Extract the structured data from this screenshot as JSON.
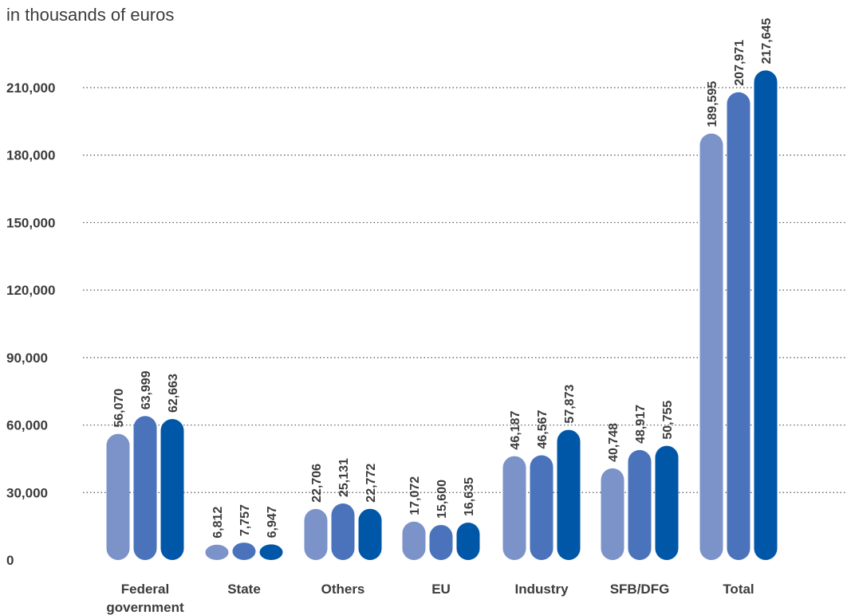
{
  "chart_data": {
    "type": "bar",
    "title": "",
    "subtitle": "in thousands of euros",
    "xlabel": "",
    "ylabel": "",
    "ylim": [
      0,
      210000
    ],
    "yticks": [
      0,
      30000,
      60000,
      90000,
      120000,
      150000,
      180000,
      210000
    ],
    "ytick_labels": [
      "0",
      "30,000",
      "60,000",
      "90,000",
      "120,000",
      "150,000",
      "180,000",
      "210,000"
    ],
    "grid": true,
    "legend": "none",
    "categories": [
      [
        "Federal",
        "government"
      ],
      [
        "State"
      ],
      [
        "Others"
      ],
      [
        "EU"
      ],
      [
        "Industry"
      ],
      [
        "SFB/DFG"
      ],
      [
        "Total"
      ]
    ],
    "series": [
      {
        "color": "#7b93c9",
        "values": [
          56070,
          6812,
          22706,
          17072,
          46187,
          40748,
          189595
        ],
        "labels": [
          "56,070",
          "6,812",
          "22,706",
          "17,072",
          "46,187",
          "40,748",
          "189,595"
        ]
      },
      {
        "color": "#4a73bc",
        "values": [
          63999,
          7757,
          25131,
          15600,
          46567,
          48917,
          207971
        ],
        "labels": [
          "63,999",
          "7,757",
          "25,131",
          "15,600",
          "46,567",
          "48,917",
          "207,971"
        ]
      },
      {
        "color": "#0057a8",
        "values": [
          62663,
          6947,
          22772,
          16635,
          57873,
          50755,
          217645
        ],
        "labels": [
          "62,663",
          "6,947",
          "22,772",
          "16,635",
          "57,873",
          "50,755",
          "217,645"
        ]
      }
    ]
  }
}
